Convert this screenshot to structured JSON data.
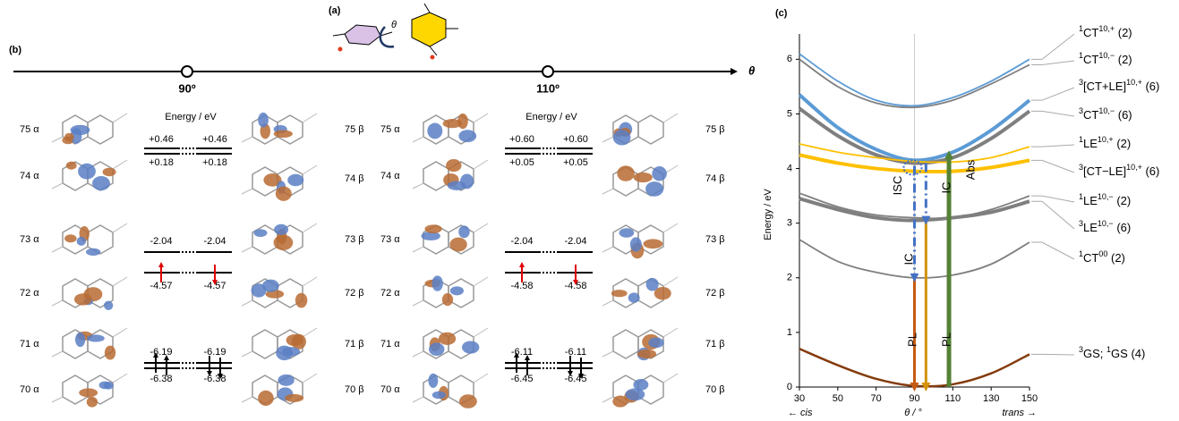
{
  "panel_a": {
    "label": "(a)",
    "angle": "θ"
  },
  "panel_b": {
    "label": "(b)",
    "axis_symbol": "θ",
    "energy_title": "Energy / eV",
    "conformations": [
      {
        "angle": "90º",
        "orbitals": [
          {
            "alpha": "75 α",
            "beta": "75 β",
            "alpha_energy": "+0.46",
            "beta_energy": "+0.46"
          },
          {
            "alpha": "74 α",
            "beta": "74 β",
            "alpha_energy": "+0.18",
            "beta_energy": "+0.18"
          },
          {
            "alpha": "73 α",
            "beta": "73 β",
            "alpha_energy": "-2.04",
            "beta_energy": "-2.04"
          },
          {
            "alpha": "72 α",
            "beta": "72 β",
            "alpha_energy": "-4.57",
            "beta_energy": "-4.57"
          },
          {
            "alpha": "71 α",
            "beta": "71 β",
            "alpha_energy": "-6.19",
            "beta_energy": "-6.19"
          },
          {
            "alpha": "70 α",
            "beta": "70 β",
            "alpha_energy": "-6.38",
            "beta_energy": "-6.38"
          }
        ]
      },
      {
        "angle": "110º",
        "orbitals": [
          {
            "alpha": "75 α",
            "beta": "75 β",
            "alpha_energy": "+0.60",
            "beta_energy": "+0.60"
          },
          {
            "alpha": "74 α",
            "beta": "74 β",
            "alpha_energy": "+0.05",
            "beta_energy": "+0.05"
          },
          {
            "alpha": "73 α",
            "beta": "73 β",
            "alpha_energy": "-2.04",
            "beta_energy": "-2.04"
          },
          {
            "alpha": "72 α",
            "beta": "72 β",
            "alpha_energy": "-4.58",
            "beta_energy": "-4.58"
          },
          {
            "alpha": "71 α",
            "beta": "71 β",
            "alpha_energy": "-6.11",
            "beta_energy": "-6.11"
          },
          {
            "alpha": "70 α",
            "beta": "70 β",
            "alpha_energy": "-6.45",
            "beta_energy": "-6.45"
          }
        ]
      }
    ]
  },
  "chart_data": {
    "type": "line",
    "label": "(c)",
    "y_label": "Energy / eV",
    "x_label": "θ / °",
    "x_left_note": "← cis",
    "x_right_note": "trans →",
    "x": [
      30,
      50,
      70,
      90,
      110,
      130,
      150
    ],
    "xlim": [
      30,
      150
    ],
    "xticks": [
      30,
      50,
      70,
      90,
      110,
      130,
      150
    ],
    "ylim": [
      0,
      6.3
    ],
    "yticks": [
      0,
      1,
      2,
      3,
      4,
      5,
      6
    ],
    "guide_x": 90,
    "series": [
      {
        "spin": "1",
        "name": "CT",
        "sup": "10,+",
        "degeneracy": " (2)",
        "color": "#5b9bd5",
        "linewidth": 1.8,
        "values": [
          6.1,
          5.6,
          5.25,
          5.15,
          5.3,
          5.6,
          6.0
        ]
      },
      {
        "spin": "1",
        "name": "CT",
        "sup": "10,−",
        "degeneracy": " (2)",
        "color": "#7f7f7f",
        "linewidth": 1.8,
        "values": [
          6.0,
          5.5,
          5.2,
          5.12,
          5.25,
          5.55,
          5.9
        ]
      },
      {
        "spin": "3",
        "name": "[CT+LE]",
        "sup": "10,+",
        "degeneracy": " (6)",
        "color": "#5b9bd5",
        "linewidth": 4,
        "values": [
          5.35,
          4.75,
          4.35,
          4.15,
          4.3,
          4.7,
          5.25
        ]
      },
      {
        "spin": "3",
        "name": "CT",
        "sup": "10,−",
        "degeneracy": " (6)",
        "color": "#7f7f7f",
        "linewidth": 4,
        "values": [
          5.1,
          4.6,
          4.25,
          4.1,
          4.2,
          4.55,
          5.05
        ]
      },
      {
        "spin": "1",
        "name": "LE",
        "sup": "10,+",
        "degeneracy": " (2)",
        "color": "#ffc000",
        "linewidth": 1.8,
        "values": [
          4.45,
          4.3,
          4.2,
          4.13,
          4.12,
          4.2,
          4.4
        ]
      },
      {
        "spin": "3",
        "name": "[CT−LE]",
        "sup": "10,+",
        "degeneracy": " (6)",
        "color": "#ffc000",
        "linewidth": 4,
        "values": [
          4.25,
          4.1,
          4.0,
          3.95,
          3.95,
          4.02,
          4.15
        ]
      },
      {
        "spin": "1",
        "name": "LE",
        "sup": "10,−",
        "degeneracy": " (2)",
        "color": "#7f7f7f",
        "linewidth": 1.8,
        "values": [
          3.55,
          3.3,
          3.15,
          3.1,
          3.1,
          3.25,
          3.5
        ]
      },
      {
        "spin": "3",
        "name": "LE",
        "sup": "10,−",
        "degeneracy": " (6)",
        "color": "#7f7f7f",
        "linewidth": 4,
        "values": [
          3.45,
          3.25,
          3.1,
          3.05,
          3.1,
          3.2,
          3.4
        ]
      },
      {
        "spin": "1",
        "name": "CT",
        "sup": "00",
        "degeneracy": " (2)",
        "color": "#7f7f7f",
        "linewidth": 1.8,
        "values": [
          2.7,
          2.3,
          2.1,
          2.0,
          2.05,
          2.25,
          2.65
        ]
      },
      {
        "spin": "3",
        "name": "GS; ",
        "spin2": "1",
        "name2": "GS",
        "degeneracy": " (4)",
        "color": "#843c0c",
        "linewidth": 2.5,
        "values": [
          0.7,
          0.4,
          0.15,
          0.02,
          0.05,
          0.25,
          0.6
        ]
      }
    ],
    "arrows": [
      {
        "label": "Abs",
        "x": 108,
        "y_from": 0,
        "y_to": 4.25,
        "color": "#548235",
        "dashed": false,
        "width": 5
      },
      {
        "label": "PL",
        "x": 90,
        "y_from": 2.0,
        "y_to": 0,
        "color": "#c55a11",
        "dashed": false,
        "width": 3
      },
      {
        "label": "PL",
        "x": 96,
        "y_from": 3.05,
        "y_to": 0,
        "color": "#d4920c",
        "dashed": false,
        "width": 3
      },
      {
        "label": "IC",
        "x": 90,
        "y_from": 4.05,
        "y_to": 2.0,
        "color": "#4472c4",
        "dashed": true,
        "width": 3
      },
      {
        "label": "IC",
        "x": 96,
        "y_from": 4.1,
        "y_to": 3.05,
        "color": "#4472c4",
        "dashed": true,
        "width": 3
      }
    ],
    "isc_label": "ISC"
  }
}
